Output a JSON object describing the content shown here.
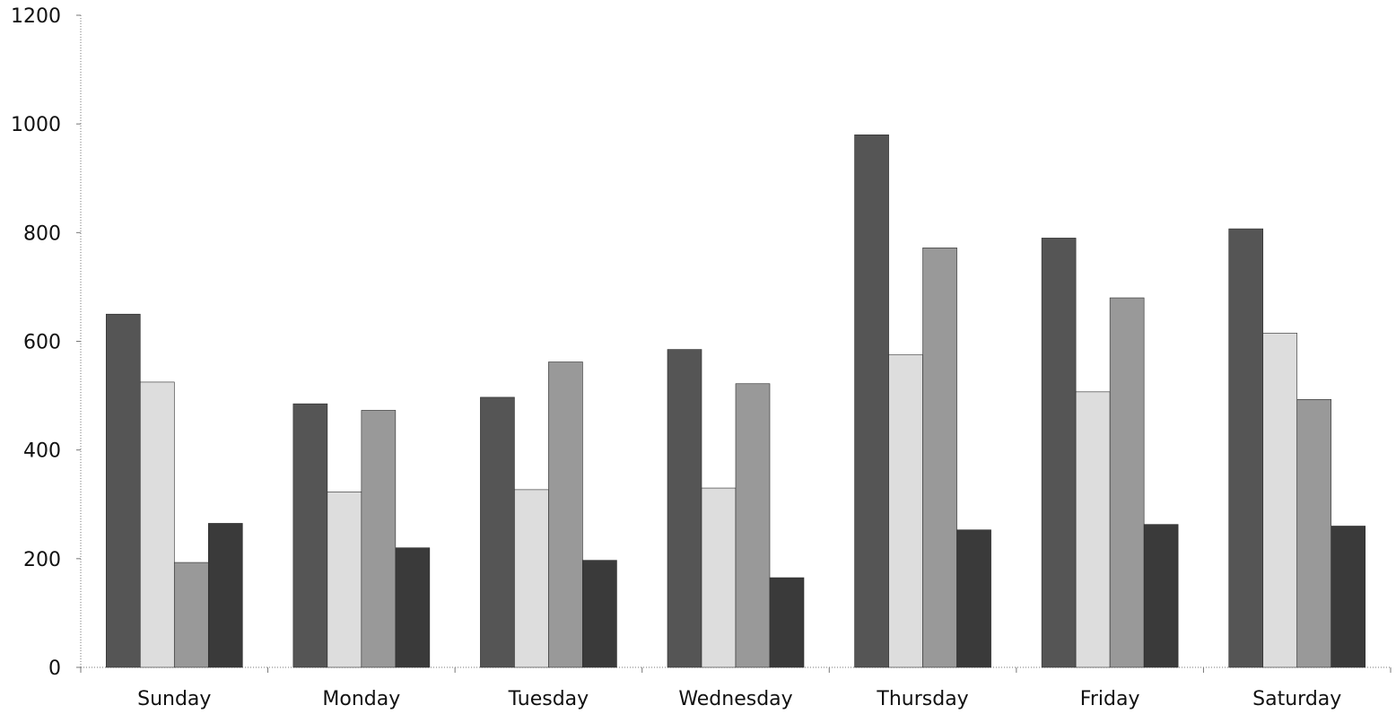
{
  "chart_data": {
    "type": "bar",
    "categories": [
      "Sunday",
      "Monday",
      "Tuesday",
      "Wednesday",
      "Thursday",
      "Friday",
      "Saturday"
    ],
    "series": [
      {
        "values": [
          650,
          485,
          497,
          585,
          980,
          790,
          807
        ],
        "color": "#555555"
      },
      {
        "values": [
          525,
          323,
          327,
          330,
          575,
          507,
          615
        ],
        "color": "#dddddd"
      },
      {
        "values": [
          193,
          473,
          562,
          522,
          772,
          680,
          493
        ],
        "color": "#999999"
      },
      {
        "values": [
          265,
          220,
          197,
          165,
          253,
          263,
          260
        ],
        "color": "#3a3a3a"
      }
    ],
    "y_ticks": [
      "0",
      "200",
      "400",
      "600",
      "800",
      "1000",
      "1200"
    ],
    "ylim": [
      0,
      1200
    ],
    "grid": false,
    "title": "",
    "xlabel": "",
    "ylabel": ""
  }
}
